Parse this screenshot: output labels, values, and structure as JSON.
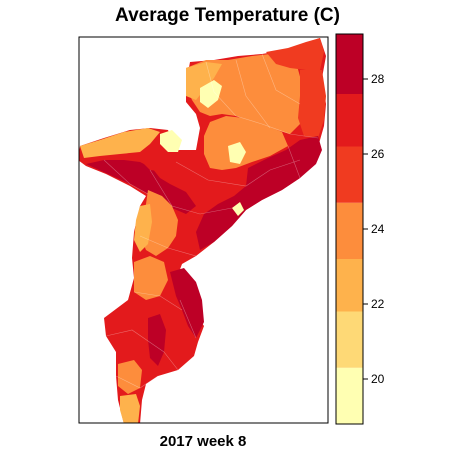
{
  "title": "Average Temperature (C)",
  "caption": "2017 week 8",
  "legend": {
    "ticks": [
      "20",
      "22",
      "24",
      "26",
      "28"
    ],
    "tick_values": [
      20,
      22,
      24,
      26,
      28
    ],
    "range": [
      18.8,
      29.2
    ],
    "bins": [
      {
        "from": 18.8,
        "to": 20.3,
        "color": "#ffffb2"
      },
      {
        "from": 20.3,
        "to": 21.8,
        "color": "#fed976"
      },
      {
        "from": 21.8,
        "to": 23.2,
        "color": "#feb24c"
      },
      {
        "from": 23.2,
        "to": 24.7,
        "color": "#fd8d3c"
      },
      {
        "from": 24.7,
        "to": 26.2,
        "color": "#f03b20"
      },
      {
        "from": 26.2,
        "to": 27.6,
        "color": "#e31a1c"
      },
      {
        "from": 27.6,
        "to": 29.2,
        "color": "#bd0026"
      }
    ]
  }
}
